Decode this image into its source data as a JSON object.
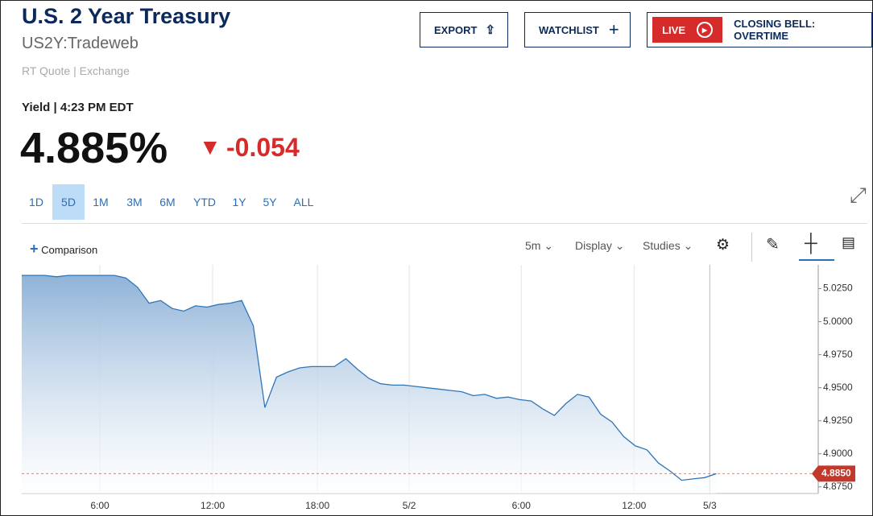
{
  "header": {
    "title": "U.S. 2 Year Treasury",
    "symbol": "US2Y:Tradeweb",
    "source": "RT Quote | Exchange",
    "buttons": [
      "EXPORT",
      "WATCHLIST"
    ],
    "live": "LIVE",
    "live_show": "CLOSING BELL: OVERTIME"
  },
  "quote": {
    "time": "Yield | 4:23 PM EDT",
    "price": "4.885%",
    "change": "-0.054"
  },
  "ranges": [
    "1D",
    "5D",
    "1M",
    "3M",
    "6M",
    "YTD",
    "1Y",
    "5Y",
    "ALL"
  ],
  "selected_range": "5D",
  "toolbar": {
    "comparison": "Comparison",
    "interval": "5m",
    "display": "Display",
    "studies": "Studies"
  },
  "chart_data": {
    "type": "area",
    "color": "#2f76b6",
    "grid": true,
    "xlim": [
      0,
      68.8
    ],
    "ylim": [
      4.87,
      5.043
    ],
    "xticks": [
      {
        "value": 6.75,
        "label": "6:00"
      },
      {
        "value": 16.49,
        "label": "12:00"
      },
      {
        "value": 25.54,
        "label": "18:00"
      },
      {
        "value": 33.47,
        "label": "5/2"
      },
      {
        "value": 43.15,
        "label": "6:00"
      },
      {
        "value": 52.89,
        "label": "12:00"
      },
      {
        "value": 59.43,
        "label": "5/3"
      }
    ],
    "yticks": [
      {
        "value": 5.025,
        "label": "5.0250"
      },
      {
        "value": 5.0,
        "label": "5.0000"
      },
      {
        "value": 4.975,
        "label": "4.9750"
      },
      {
        "value": 4.95,
        "label": "4.9500"
      },
      {
        "value": 4.925,
        "label": "4.9250"
      },
      {
        "value": 4.9,
        "label": "4.9000"
      },
      {
        "value": 4.875,
        "label": "4.8750"
      }
    ],
    "values": [
      5.035,
      5.035,
      5.035,
      5.034,
      5.035,
      5.035,
      5.035,
      5.035,
      5.035,
      5.033,
      5.026,
      5.014,
      5.016,
      5.01,
      5.008,
      5.012,
      5.011,
      5.013,
      5.014,
      5.016,
      4.997,
      4.935,
      4.958,
      4.962,
      4.965,
      4.966,
      4.966,
      4.966,
      4.972,
      4.964,
      4.957,
      4.953,
      4.952,
      4.952,
      4.951,
      4.95,
      4.949,
      4.948,
      4.947,
      4.944,
      4.945,
      4.942,
      4.943,
      4.941,
      4.94,
      4.934,
      4.929,
      4.938,
      4.945,
      4.943,
      4.93,
      4.924,
      4.913,
      4.906,
      4.903,
      4.893,
      4.887,
      4.88,
      4.881,
      4.882,
      4.885
    ],
    "last": {
      "value": 4.885,
      "label": "4.8850"
    }
  }
}
